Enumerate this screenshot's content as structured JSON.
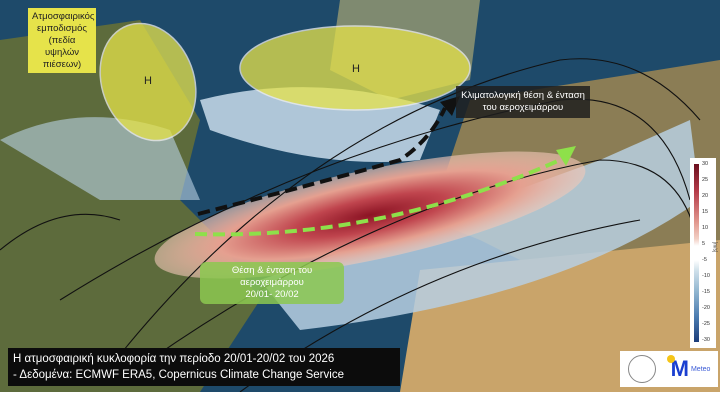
{
  "annotations": {
    "blocking": "Ατμοσφαιρικός εμποδισμός (πεδία υψηλών πιέσεων)",
    "high_label": "H",
    "climatological": "Κλιματολογική θέση & ένταση του αεροχειμάρρου",
    "observed": "Θέση & ένταση του αεροχειμάρρου",
    "observed_period": "20/01- 20/02"
  },
  "caption": {
    "line1": "Η ατμοσφαιρική κυκλοφορία την περίοδο 20/01-20/02 του 2026",
    "line2": "- Δεδομένα: ECMWF ERA5, Copernicus Climate Change Service"
  },
  "colorbar": {
    "ticks": [
      "30",
      "25",
      "20",
      "15",
      "10",
      "5",
      "-5",
      "-10",
      "-15",
      "-20",
      "-25",
      "-30"
    ],
    "unit": "[m/s]",
    "positive_color": "#b43a48",
    "negative_color": "#4a7bb0"
  },
  "logos": {
    "meteo": "Meteo"
  },
  "colors": {
    "observed_jet": "#8ee04a",
    "climatological_jet": "#111111",
    "blocking_highs": "#e6e34a"
  }
}
